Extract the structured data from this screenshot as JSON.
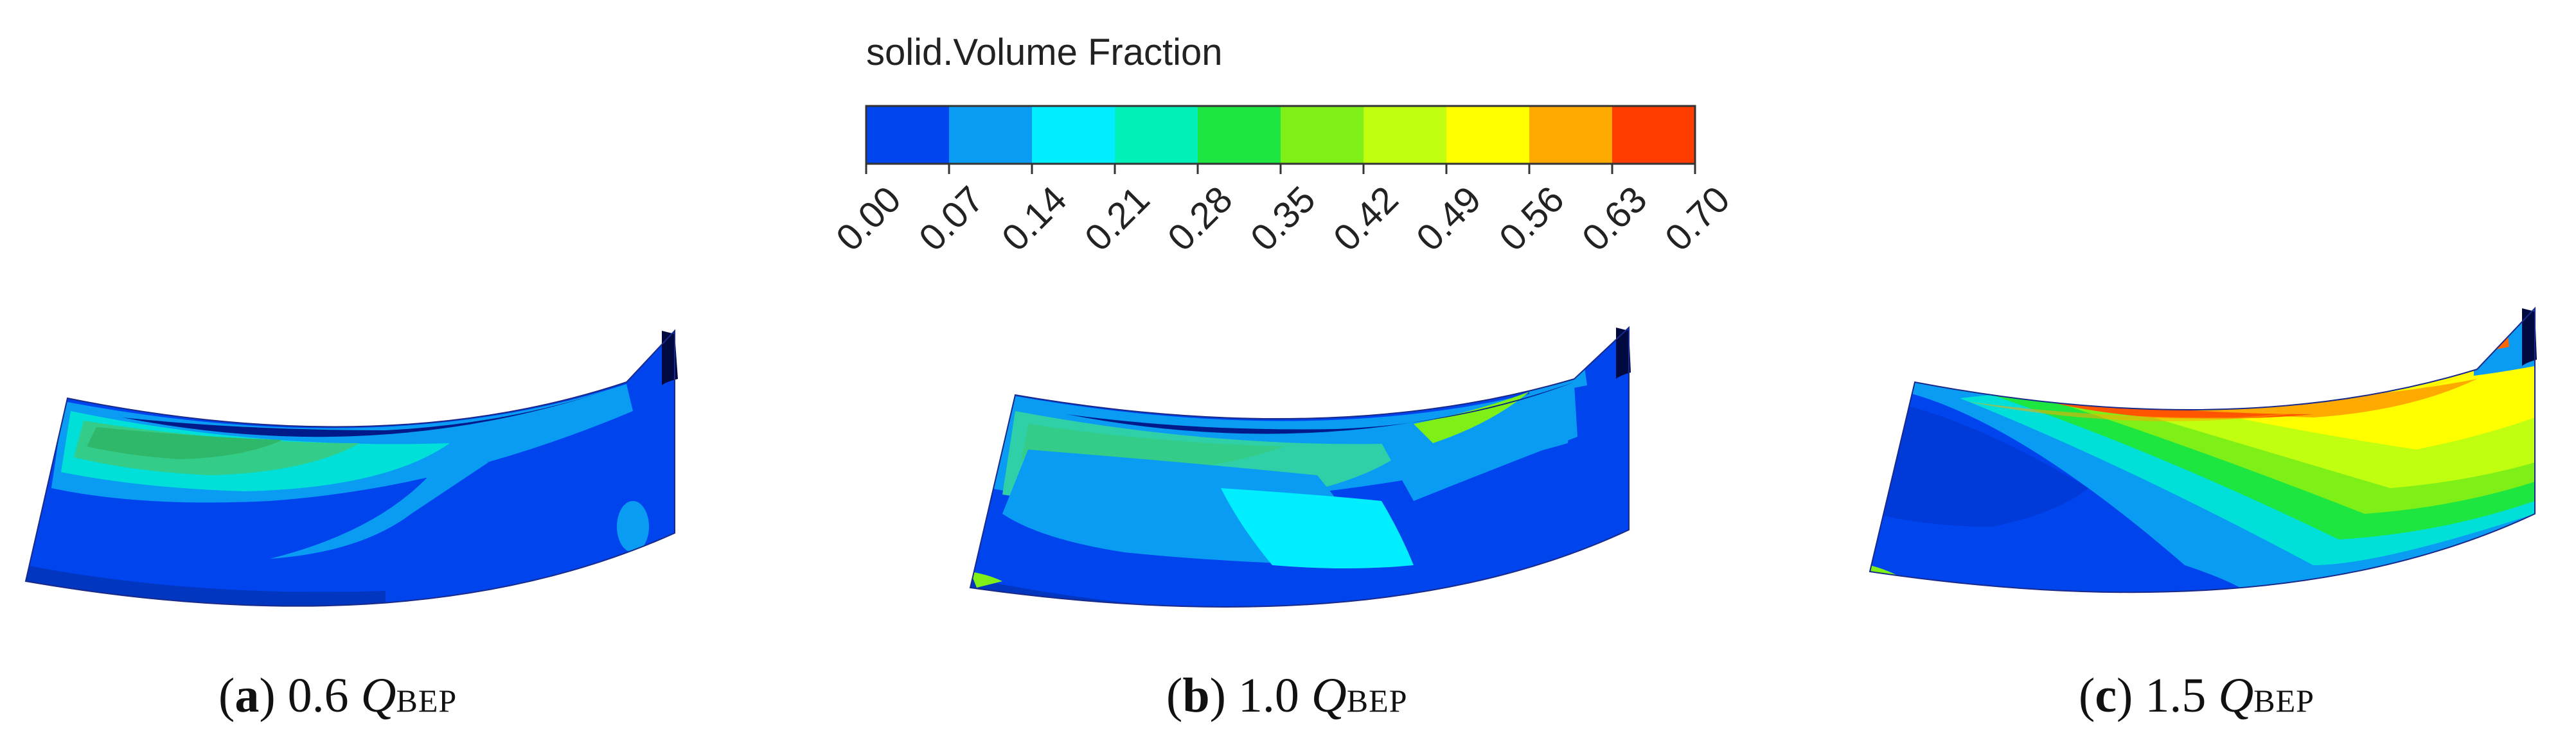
{
  "colorbar": {
    "title": "solid.Volume Fraction",
    "colors": [
      "#0044ee",
      "#0a9cf2",
      "#00eeff",
      "#00f0b8",
      "#1ee640",
      "#7ef018",
      "#c0ff10",
      "#ffff00",
      "#ffaa00",
      "#ff3c00"
    ],
    "ticks": [
      "0.00",
      "0.07",
      "0.14",
      "0.21",
      "0.28",
      "0.35",
      "0.42",
      "0.49",
      "0.56",
      "0.63",
      "0.70"
    ]
  },
  "panels": [
    {
      "letter": "a",
      "value": "0.6",
      "symbol": "Q",
      "subscript": "BEP"
    },
    {
      "letter": "b",
      "value": "1.0",
      "symbol": "Q",
      "subscript": "BEP"
    },
    {
      "letter": "c",
      "value": "1.5",
      "symbol": "Q",
      "subscript": "BEP"
    }
  ]
}
